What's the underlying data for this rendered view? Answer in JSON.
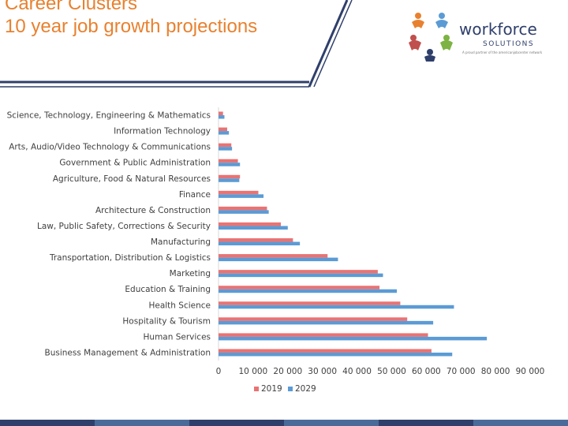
{
  "slide": {
    "title_line1": "Career Clusters",
    "title_line2": "10 year job growth projections",
    "title_color": "#e8812f"
  },
  "logo": {
    "name_main": "workforce",
    "name_sub": "SOLUTIONS",
    "tagline": "A proud partner of the americanjobcenter network",
    "colors": [
      "#e8812f",
      "#5b9bd5",
      "#7cb342",
      "#c0504d",
      "#2f3f6b"
    ]
  },
  "bottom_bar_colors": [
    "#2f3f6b",
    "#4a6b9a",
    "#2f3f6b",
    "#4a6b9a",
    "#2f3f6b",
    "#4a6b9a"
  ],
  "chart_data": {
    "type": "bar",
    "orientation": "horizontal",
    "categories": [
      "Science, Technology, Engineering & Mathematics",
      "Information Technology",
      "Arts, Audio/Video Technology & Communications",
      "Government & Public Administration",
      "Agriculture, Food & Natural Resources",
      "Finance",
      "Architecture & Construction",
      "Law, Public Safety, Corrections & Security",
      "Manufacturing",
      "Transportation, Distribution & Logistics",
      "Marketing",
      "Education & Training",
      "Health Science",
      "Hospitality & Tourism",
      "Human Services",
      "Business Management & Administration"
    ],
    "series": [
      {
        "name": "2019",
        "color": "#e97373",
        "values": [
          1300,
          2500,
          3700,
          5600,
          6200,
          11500,
          14000,
          18000,
          21500,
          31500,
          46000,
          46500,
          52500,
          54500,
          60500,
          61500
        ]
      },
      {
        "name": "2029",
        "color": "#5b9bd5",
        "values": [
          1700,
          3000,
          3900,
          6200,
          6000,
          13000,
          14500,
          20000,
          23500,
          34500,
          47500,
          51500,
          68000,
          62000,
          77500,
          67500
        ]
      }
    ],
    "x_ticks": [
      0,
      10000,
      20000,
      30000,
      40000,
      50000,
      60000,
      70000,
      80000,
      90000
    ],
    "x_tick_labels": [
      "0",
      "10 000",
      "20 000",
      "30 000",
      "40 000",
      "50 000",
      "60 000",
      "70 000",
      "80 000",
      "90 000"
    ],
    "xlim": [
      0,
      90000
    ],
    "grid": false,
    "legend_position": "bottom"
  }
}
